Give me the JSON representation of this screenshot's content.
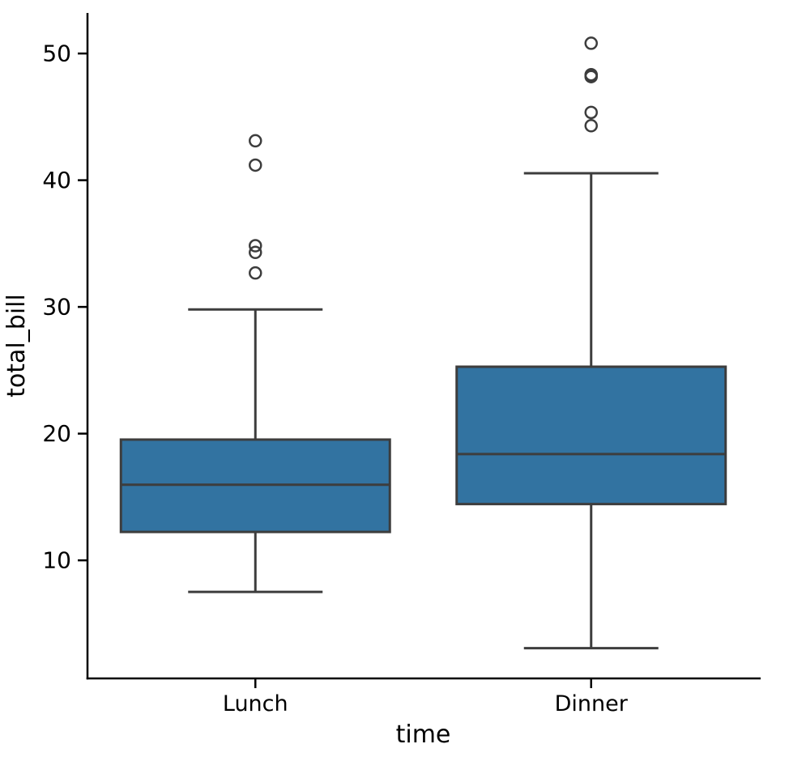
{
  "chart_data": {
    "type": "box",
    "title": "",
    "xlabel": "time",
    "ylabel": "total_bill",
    "categories": [
      "Lunch",
      "Dinner"
    ],
    "ylim": [
      0.68,
      53.2
    ],
    "yticks": [
      10,
      20,
      30,
      40,
      50
    ],
    "grid": false,
    "legend": "none",
    "series": [
      {
        "name": "Lunch",
        "whisker_low": 7.51,
        "q1": 12.24,
        "median": 15.97,
        "q3": 19.53,
        "whisker_high": 29.8,
        "outliers": [
          32.68,
          34.3,
          34.83,
          41.19,
          43.11
        ]
      },
      {
        "name": "Dinner",
        "whisker_low": 3.07,
        "q1": 14.44,
        "median": 18.39,
        "q3": 25.28,
        "whisker_high": 40.55,
        "outliers": [
          44.3,
          45.35,
          48.17,
          48.27,
          48.33,
          50.81
        ]
      }
    ],
    "style": {
      "box_fill": "#3273a1",
      "line_color": "#3d3d3d",
      "spine_color": "#000000",
      "text_color": "#000000",
      "background": "#ffffff"
    }
  }
}
